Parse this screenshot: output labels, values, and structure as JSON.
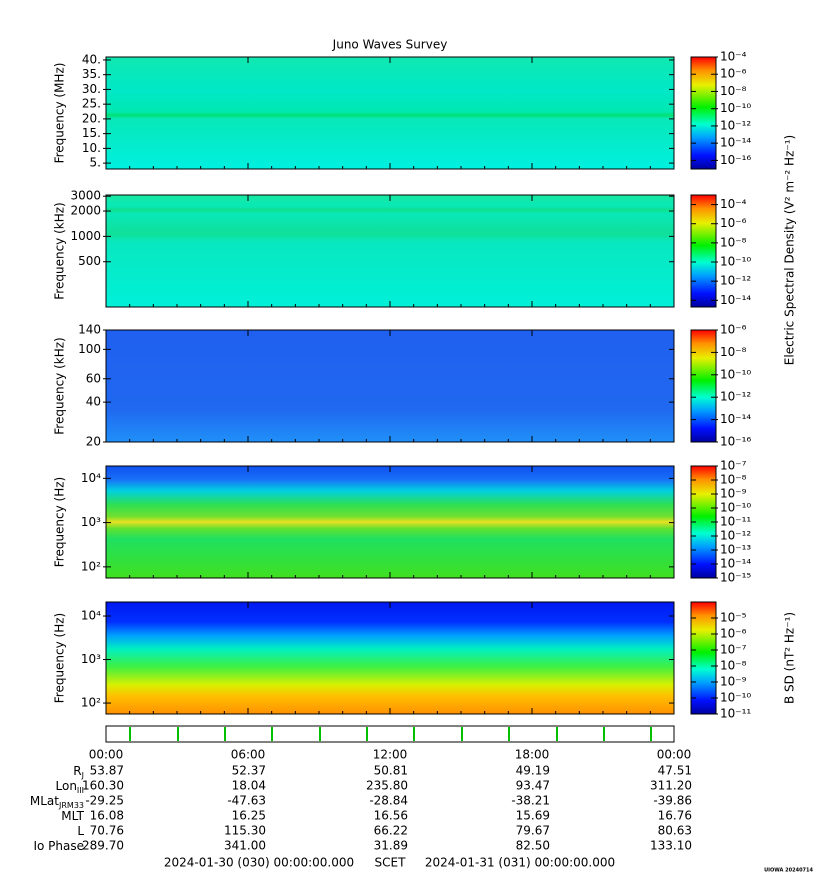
{
  "title": "Juno Waves Survey",
  "time_axis": {
    "xlim": [
      0,
      24
    ],
    "xticks": [
      {
        "value": 0,
        "label": "00:00"
      },
      {
        "value": 6,
        "label": "06:00"
      },
      {
        "value": 12,
        "label": "12:00"
      },
      {
        "value": 18,
        "label": "18:00"
      },
      {
        "value": 24,
        "label": "00:00"
      }
    ]
  },
  "chart_data": [
    {
      "type": "spectrogram",
      "ylabel": "Frequency (MHz)",
      "ylim": [
        3,
        41
      ],
      "yticks": [
        {
          "value": 5,
          "label": "5."
        },
        {
          "value": 10,
          "label": "10."
        },
        {
          "value": 15,
          "label": "15."
        },
        {
          "value": 20,
          "label": "20."
        },
        {
          "value": 25,
          "label": "25."
        },
        {
          "value": 30,
          "label": "30."
        },
        {
          "value": 35,
          "label": "35."
        },
        {
          "value": 40,
          "label": "40."
        }
      ],
      "clim": [
        1e-17,
        0.0001
      ],
      "cticks": [
        {
          "value": 1e-16,
          "label": "10⁻¹⁶"
        },
        {
          "value": 1e-14,
          "label": "10⁻¹⁴"
        },
        {
          "value": 1e-12,
          "label": "10⁻¹²"
        },
        {
          "value": 1e-10,
          "label": "10⁻¹⁰"
        },
        {
          "value": 1e-08,
          "label": "10⁻⁸"
        },
        {
          "value": 1e-06,
          "label": "10⁻⁶"
        },
        {
          "value": 0.0001,
          "label": "10⁻⁴"
        }
      ]
    },
    {
      "type": "spectrogram",
      "ylabel": "Frequency (kHz)",
      "ylim": [
        145,
        3100
      ],
      "log_y": true,
      "yticks": [
        500,
        1000,
        2000,
        3000
      ],
      "clim": [
        2e-15,
        0.001
      ],
      "cticks": [
        {
          "value": 1e-14,
          "label": "10⁻¹⁴"
        },
        {
          "value": 1e-12,
          "label": "10⁻¹²"
        },
        {
          "value": 1e-10,
          "label": "10⁻¹⁰"
        },
        {
          "value": 1e-08,
          "label": "10⁻⁸"
        },
        {
          "value": 1e-06,
          "label": "10⁻⁶"
        },
        {
          "value": 0.0001,
          "label": "10⁻⁴"
        }
      ]
    },
    {
      "type": "spectrogram",
      "ylabel": "Frequency (kHz)",
      "ylim": [
        20,
        140
      ],
      "log_y": true,
      "yticks": [
        20,
        40,
        60,
        100,
        140
      ],
      "clim": [
        1e-16,
        1e-06
      ],
      "cticks": [
        {
          "value": 1e-16,
          "label": "10⁻¹⁶"
        },
        {
          "value": 1e-14,
          "label": "10⁻¹⁴"
        },
        {
          "value": 1e-12,
          "label": "10⁻¹²"
        },
        {
          "value": 1e-10,
          "label": "10⁻¹⁰"
        },
        {
          "value": 1e-08,
          "label": "10⁻⁸"
        },
        {
          "value": 1e-06,
          "label": "10⁻⁶"
        }
      ]
    },
    {
      "type": "spectrogram",
      "ylabel": "Frequency (Hz)",
      "ylim": [
        56,
        19000
      ],
      "log_y": true,
      "yticks": [
        {
          "value": 100,
          "label": "10²"
        },
        {
          "value": 1000,
          "label": "10³"
        },
        {
          "value": 10000,
          "label": "10⁴"
        }
      ],
      "clim": [
        1e-15,
        1e-07
      ],
      "cticks": [
        {
          "value": 1e-15,
          "label": "10⁻¹⁵"
        },
        {
          "value": 1e-14,
          "label": "10⁻¹⁴"
        },
        {
          "value": 1e-13,
          "label": "10⁻¹³"
        },
        {
          "value": 1e-12,
          "label": "10⁻¹²"
        },
        {
          "value": 1e-11,
          "label": "10⁻¹¹"
        },
        {
          "value": 1e-10,
          "label": "10⁻¹⁰"
        },
        {
          "value": 1e-09,
          "label": "10⁻⁹"
        },
        {
          "value": 1e-08,
          "label": "10⁻⁸"
        },
        {
          "value": 1e-07,
          "label": "10⁻⁷"
        }
      ]
    },
    {
      "type": "spectrogram",
      "ylabel": "Frequency (Hz)",
      "ylim": [
        56,
        21000
      ],
      "log_y": true,
      "yticks": [
        {
          "value": 100,
          "label": "10²"
        },
        {
          "value": 1000,
          "label": "10³"
        },
        {
          "value": 10000,
          "label": "10⁴"
        }
      ],
      "clim": [
        1e-11,
        0.0001
      ],
      "clabel": "B SD (nT² Hz⁻¹)",
      "cticks": [
        {
          "value": 1e-11,
          "label": "10⁻¹¹"
        },
        {
          "value": 1e-10,
          "label": "10⁻¹⁰"
        },
        {
          "value": 1e-09,
          "label": "10⁻⁹"
        },
        {
          "value": 1e-08,
          "label": "10⁻⁸"
        },
        {
          "value": 1e-07,
          "label": "10⁻⁷"
        },
        {
          "value": 1e-06,
          "label": "10⁻⁶"
        },
        {
          "value": 1e-05,
          "label": "10⁻⁵"
        }
      ]
    }
  ],
  "electric_clabel": "Electric Spectral Density (V² m⁻² Hz⁻¹)",
  "ephemeris": {
    "rows": [
      {
        "label": "R",
        "sub": "J",
        "values": [
          "53.87",
          "52.37",
          "50.81",
          "49.19",
          "47.51"
        ]
      },
      {
        "label": "Lon",
        "sub": "III",
        "values": [
          "160.30",
          "18.04",
          "235.80",
          "93.47",
          "311.20"
        ]
      },
      {
        "label": "MLat",
        "sub": "JRM33",
        "values": [
          "-29.25",
          "-47.63",
          "-28.84",
          "-38.21",
          "-39.86"
        ]
      },
      {
        "label": "MLT",
        "values": [
          "16.08",
          "16.25",
          "16.56",
          "15.69",
          "16.76"
        ]
      },
      {
        "label": "L",
        "values": [
          "70.76",
          "115.30",
          "66.22",
          "79.67",
          "80.63"
        ]
      },
      {
        "label": "Io Phase",
        "values": [
          "289.70",
          "341.00",
          "31.89",
          "82.50",
          "133.10"
        ]
      }
    ]
  },
  "footer": {
    "start": "2024-01-30 (030) 00:00:00.000",
    "scet": "SCET",
    "end": "2024-01-31 (031) 00:00:00.000",
    "stamp": "UIOWA 20240714"
  }
}
